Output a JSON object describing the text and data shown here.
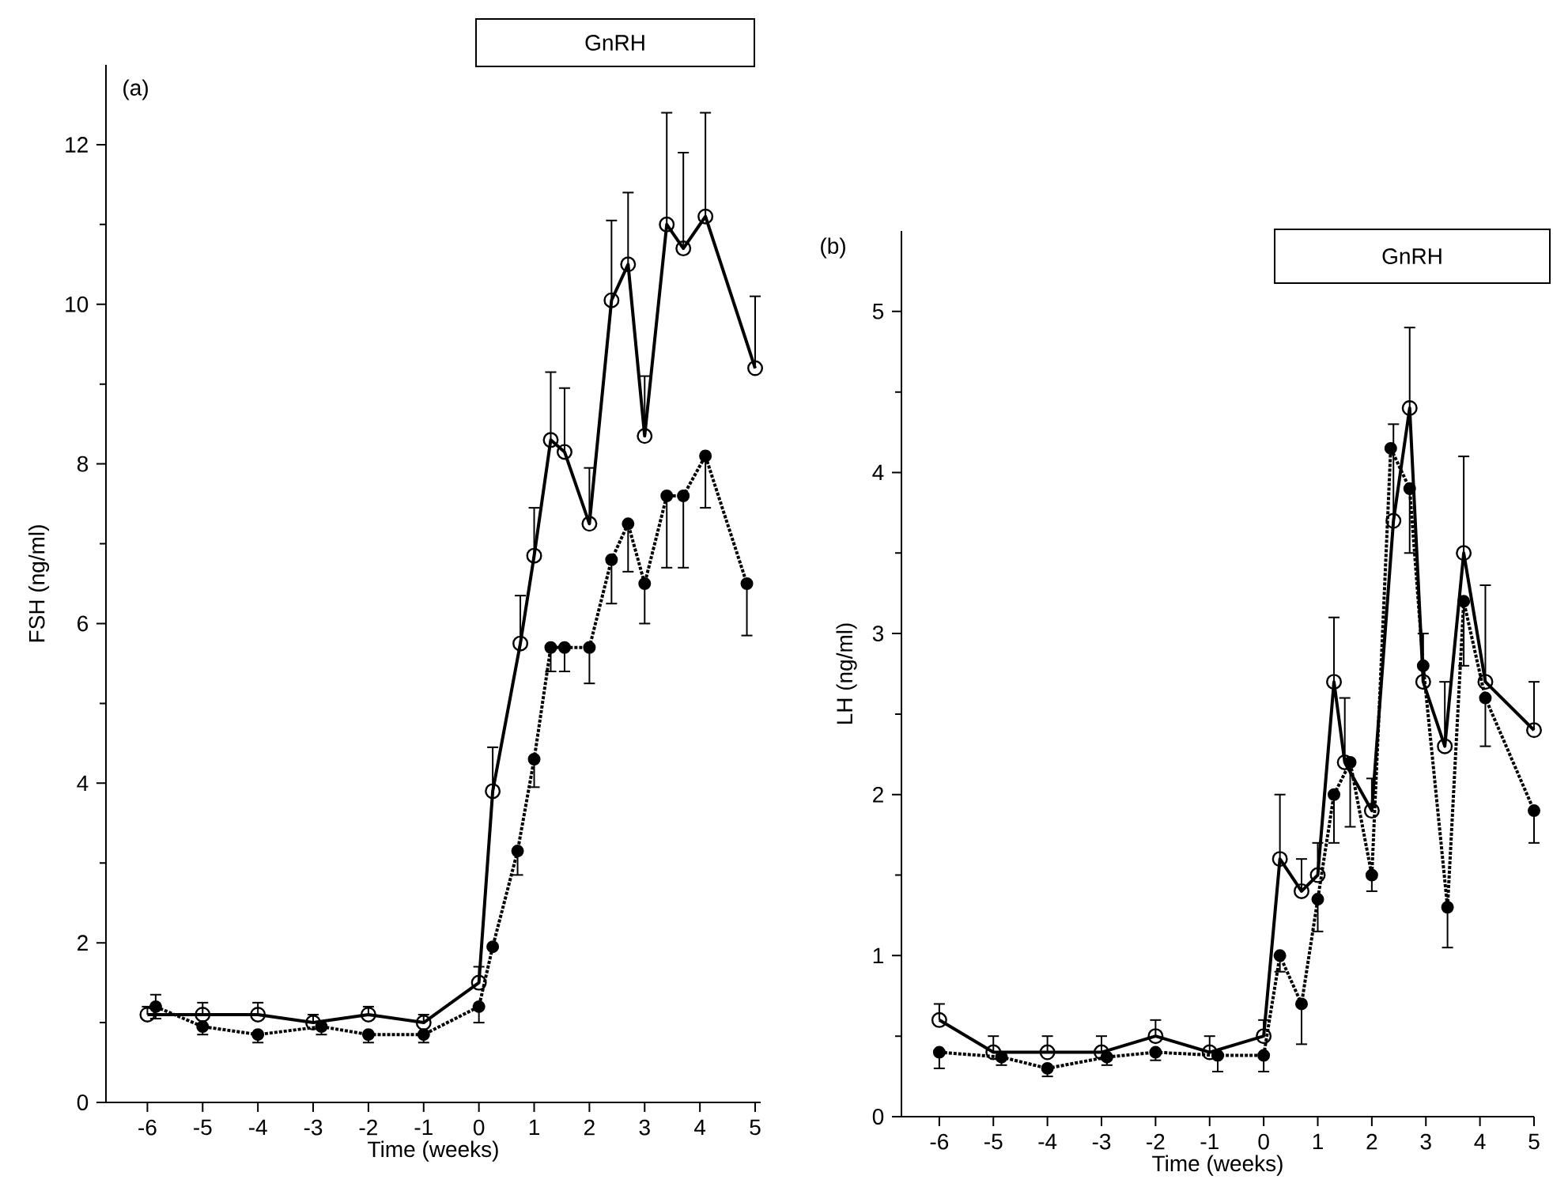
{
  "chart_data": [
    {
      "type": "line",
      "xlabel": "Time (weeks)",
      "ylabel": "FSH (ng/ml)",
      "annotations": [
        "(a)",
        "GnRH"
      ],
      "marker": "circle",
      "xlim": [
        -6.75,
        5.1
      ],
      "ylim": [
        0,
        13
      ],
      "xticks": [
        -6,
        -5,
        -4,
        -3,
        -2,
        -1,
        0,
        1,
        2,
        3,
        4,
        5
      ],
      "yticks": [
        0,
        {
          "value": 1,
          "label": null
        },
        2,
        {
          "value": 3,
          "label": null
        },
        4,
        {
          "value": 5,
          "label": null
        },
        6,
        {
          "value": 7,
          "label": null
        },
        8,
        {
          "value": 9,
          "label": null
        },
        10,
        {
          "value": 11,
          "label": null
        },
        12
      ],
      "series": [
        {
          "color": "#000000",
          "line_style": "solid",
          "x": [
            -6,
            -5,
            -4,
            -3,
            -2,
            -1,
            0,
            0.25,
            0.75,
            1.0,
            1.3,
            1.55,
            2.0,
            2.4,
            2.7,
            3.0,
            3.4,
            3.7,
            4.1,
            5.0
          ],
          "values": [
            1.1,
            1.1,
            1.1,
            1.0,
            1.1,
            1.0,
            1.5,
            3.9,
            5.75,
            6.85,
            8.3,
            8.15,
            7.25,
            10.05,
            10.5,
            8.35,
            11.0,
            10.7,
            11.1,
            9.2
          ],
          "errors": [
            [
              1.1,
              1.2
            ],
            [
              1.1,
              1.25
            ],
            [
              1.1,
              1.25
            ],
            [
              1.0,
              1.1
            ],
            [
              1.1,
              1.2
            ],
            [
              1.0,
              1.1
            ],
            [
              1.5,
              1.7
            ],
            [
              3.9,
              4.45
            ],
            [
              5.75,
              6.35
            ],
            [
              6.85,
              7.45
            ],
            [
              8.3,
              9.15
            ],
            [
              8.15,
              8.95
            ],
            [
              7.25,
              7.95
            ],
            [
              10.05,
              11.05
            ],
            [
              10.5,
              11.4
            ],
            [
              8.35,
              9.1
            ],
            [
              11.0,
              12.4
            ],
            [
              10.7,
              11.9
            ],
            [
              11.1,
              12.4
            ],
            [
              9.2,
              10.1
            ]
          ]
        },
        {
          "color": "#000000",
          "line_style": "dotted",
          "x": [
            -5.85,
            -5,
            -4,
            -2.85,
            -2,
            -1,
            0,
            0.25,
            0.7,
            1.0,
            1.3,
            1.55,
            2.0,
            2.4,
            2.7,
            3.0,
            3.4,
            3.7,
            4.1,
            4.85
          ],
          "values": [
            1.2,
            0.95,
            0.85,
            0.95,
            0.85,
            0.85,
            1.2,
            1.95,
            3.15,
            4.3,
            5.7,
            5.7,
            5.7,
            6.8,
            7.25,
            6.5,
            7.6,
            7.6,
            8.1,
            6.5
          ],
          "errors": [
            0.15,
            [
              0.85,
              0.95
            ],
            [
              0.75,
              0.85
            ],
            [
              0.85,
              0.95
            ],
            [
              0.75,
              0.85
            ],
            [
              0.75,
              0.85
            ],
            [
              1.0,
              1.2
            ],
            null,
            [
              2.85,
              3.15
            ],
            [
              3.95,
              4.3
            ],
            [
              5.4,
              5.7
            ],
            [
              5.4,
              5.7
            ],
            [
              5.25,
              5.7
            ],
            [
              6.25,
              6.8
            ],
            [
              6.65,
              7.25
            ],
            [
              6.0,
              6.5
            ],
            [
              6.7,
              7.6
            ],
            [
              6.7,
              7.6
            ],
            [
              7.45,
              8.1
            ],
            [
              5.85,
              6.5
            ]
          ]
        }
      ]
    },
    {
      "type": "line",
      "xlabel": "Time (weeks)",
      "ylabel": "LH (ng/ml)",
      "annotations": [
        "(b)",
        "GnRH"
      ],
      "marker": "circle",
      "xlim": [
        -6.7,
        5.0
      ],
      "ylim": [
        0,
        5.5
      ],
      "xticks": [
        -6,
        -5,
        -4,
        -3,
        -2,
        -1,
        0,
        1,
        2,
        3,
        4,
        5
      ],
      "yticks": [
        0,
        {
          "value": 0.5,
          "label": null
        },
        1,
        {
          "value": 1.5,
          "label": null
        },
        2,
        {
          "value": 2.5,
          "label": null
        },
        3,
        {
          "value": 3.5,
          "label": null
        },
        4,
        {
          "value": 4.5,
          "label": null
        },
        5
      ],
      "series": [
        {
          "color": "#000000",
          "line_style": "solid",
          "x": [
            -6,
            -5,
            -4,
            -3,
            -2,
            -1,
            0,
            0.3,
            0.7,
            1.0,
            1.3,
            1.5,
            2.0,
            2.4,
            2.7,
            2.95,
            3.35,
            3.7,
            4.1,
            5.0
          ],
          "values": [
            0.6,
            0.4,
            0.4,
            0.4,
            0.5,
            0.4,
            0.5,
            1.6,
            1.4,
            1.5,
            2.7,
            2.2,
            1.9,
            3.7,
            4.4,
            2.7,
            2.3,
            3.5,
            2.7,
            2.4
          ],
          "errors": [
            [
              0.6,
              0.7
            ],
            [
              0.4,
              0.5
            ],
            [
              0.4,
              0.5
            ],
            [
              0.4,
              0.5
            ],
            [
              0.5,
              0.6
            ],
            [
              0.4,
              0.5
            ],
            [
              0.5,
              0.6
            ],
            [
              1.6,
              2.0
            ],
            [
              1.4,
              1.6
            ],
            [
              1.5,
              1.7
            ],
            [
              2.7,
              3.1
            ],
            [
              2.2,
              2.6
            ],
            [
              1.9,
              2.1
            ],
            [
              3.7,
              4.3
            ],
            [
              4.4,
              4.9
            ],
            [
              2.7,
              3.0
            ],
            [
              2.3,
              2.7
            ],
            [
              3.5,
              4.1
            ],
            [
              2.7,
              3.3
            ],
            [
              2.4,
              2.7
            ]
          ]
        },
        {
          "color": "#000000",
          "line_style": "dotted",
          "x": [
            -6,
            -4.85,
            -4,
            -2.9,
            -2,
            -0.85,
            0,
            0.3,
            0.7,
            1.0,
            1.3,
            1.6,
            2.0,
            2.35,
            2.7,
            2.95,
            3.4,
            3.7,
            4.1,
            5.0
          ],
          "values": [
            0.4,
            0.37,
            0.3,
            0.37,
            0.4,
            0.38,
            0.38,
            1.0,
            0.7,
            1.35,
            2.0,
            2.2,
            1.5,
            4.15,
            3.9,
            2.8,
            1.3,
            3.2,
            2.6,
            1.9
          ],
          "errors": [
            [
              0.3,
              0.4
            ],
            [
              0.32,
              0.37
            ],
            [
              0.25,
              0.3
            ],
            [
              0.32,
              0.37
            ],
            [
              0.35,
              0.4
            ],
            [
              0.28,
              0.38
            ],
            [
              0.28,
              0.38
            ],
            [
              0.9,
              1.0
            ],
            [
              0.45,
              0.7
            ],
            [
              1.15,
              1.35
            ],
            [
              1.7,
              2.0
            ],
            [
              1.8,
              2.2
            ],
            [
              1.4,
              1.5
            ],
            null,
            [
              3.5,
              3.9
            ],
            null,
            [
              1.05,
              1.3
            ],
            [
              2.8,
              3.2
            ],
            [
              2.3,
              2.6
            ],
            [
              1.7,
              1.9
            ]
          ]
        }
      ]
    }
  ]
}
